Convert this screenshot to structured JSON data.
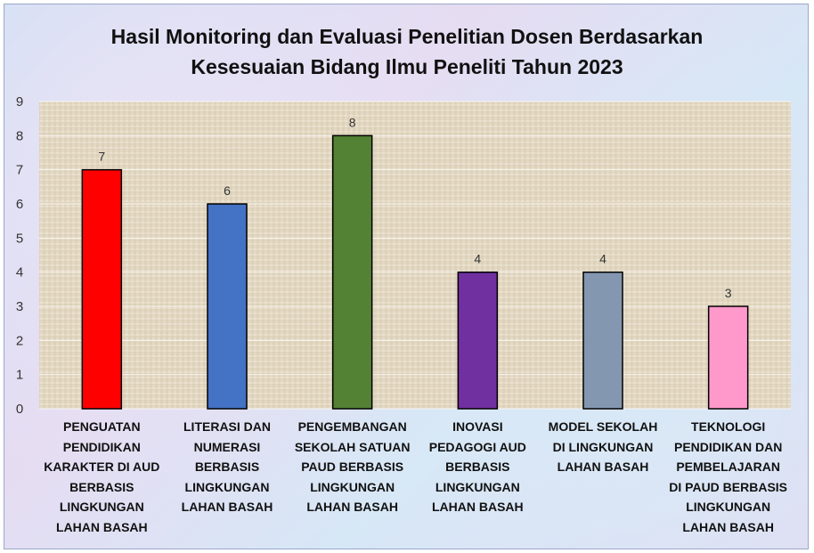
{
  "chart_data": {
    "type": "bar",
    "title": "Hasil Monitoring dan Evaluasi Penelitian Dosen Berdasarkan Kesesuaian Bidang Ilmu Peneliti Tahun 2023",
    "title_lines": [
      "Hasil Monitoring dan Evaluasi Penelitian Dosen Berdasarkan",
      "Kesesuaian Bidang Ilmu Peneliti Tahun 2023"
    ],
    "categories": [
      "PENGUATAN PENDIDIKAN KARAKTER DI AUD BERBASIS LINGKUNGAN LAHAN BASAH",
      "LITERASI DAN NUMERASI BERBASIS LINGKUNGAN LAHAN BASAH",
      "PENGEMBANGAN SEKOLAH SATUAN PAUD BERBASIS LINGKUNGAN LAHAN BASAH",
      "INOVASI PEDAGOGI AUD BERBASIS LINGKUNGAN LAHAN BASAH",
      "MODEL SEKOLAH DI LINGKUNGAN LAHAN BASAH",
      "TEKNOLOGI PENDIDIKAN DAN PEMBELAJARAN DI PAUD BERBASIS LINGKUNGAN LAHAN BASAH"
    ],
    "category_lines": [
      [
        "PENGUATAN",
        "PENDIDIKAN",
        "KARAKTER DI AUD",
        "BERBASIS",
        "LINGKUNGAN",
        "LAHAN BASAH"
      ],
      [
        "LITERASI DAN",
        "NUMERASI",
        "BERBASIS",
        "LINGKUNGAN",
        "LAHAN BASAH"
      ],
      [
        "PENGEMBANGAN",
        "SEKOLAH SATUAN",
        "PAUD BERBASIS",
        "LINGKUNGAN",
        "LAHAN BASAH"
      ],
      [
        "INOVASI",
        "PEDAGOGI AUD",
        "BERBASIS",
        "LINGKUNGAN",
        "LAHAN BASAH"
      ],
      [
        "MODEL SEKOLAH",
        "DI LINGKUNGAN",
        "LAHAN BASAH"
      ],
      [
        "TEKNOLOGI",
        "PENDIDIKAN DAN",
        "PEMBELAJARAN",
        "DI PAUD BERBASIS",
        "LINGKUNGAN",
        "LAHAN BASAH"
      ]
    ],
    "values": [
      7,
      6,
      8,
      4,
      4,
      3
    ],
    "bar_colors": [
      "#ff0000",
      "#4472c4",
      "#548235",
      "#7030a0",
      "#8497b0",
      "#ff99cc"
    ],
    "ylim": [
      0,
      9
    ],
    "yticks": [
      0,
      1,
      2,
      3,
      4,
      5,
      6,
      7,
      8,
      9
    ],
    "xlabel": "",
    "ylabel": "",
    "grid": true,
    "legend": "none",
    "plot_background": "#e6dcc8"
  }
}
